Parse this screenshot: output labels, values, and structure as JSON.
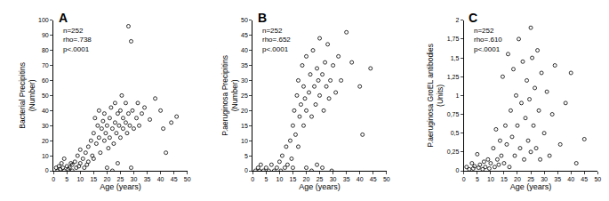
{
  "chart_data": [
    {
      "type": "scatter",
      "title": "A",
      "annotations": [
        "n=252",
        "rho=.738",
        "p<.0001"
      ],
      "xlabel": "Age (years)",
      "ylabel": [
        "Bacterial Precipitins",
        "(Number)"
      ],
      "color": "#000000",
      "marker": "circle-open",
      "grid": false,
      "xlim": [
        0,
        50
      ],
      "xticks": [
        0,
        5,
        10,
        15,
        20,
        25,
        30,
        35,
        40,
        45,
        50
      ],
      "ylim": [
        0,
        100
      ],
      "yticks": [
        0,
        10,
        20,
        30,
        40,
        50,
        60,
        70,
        80,
        90,
        100
      ],
      "x": [
        1,
        1.5,
        2,
        2.5,
        3,
        3.5,
        4,
        4,
        5,
        5.5,
        6,
        6.5,
        7,
        7,
        8,
        8.5,
        9,
        9.5,
        10,
        10,
        11,
        11.5,
        12,
        12.5,
        13,
        13,
        14,
        14.5,
        15,
        15,
        15.5,
        16,
        16.5,
        17,
        17,
        17.5,
        18,
        18.5,
        19,
        19,
        19.5,
        20,
        20.5,
        21,
        21,
        21.5,
        22,
        22.5,
        23,
        23,
        23.5,
        24,
        24.5,
        25,
        25,
        25.5,
        26,
        26,
        27,
        27,
        27.5,
        28,
        28,
        28.5,
        29,
        29,
        29.5,
        30,
        31,
        31.5,
        32,
        33,
        34,
        36,
        38,
        40,
        41,
        42,
        44,
        46,
        20,
        22,
        24
      ],
      "values": [
        2,
        0,
        3,
        1,
        5,
        2,
        0,
        8,
        3,
        1,
        2,
        5,
        0,
        4,
        6,
        2,
        10,
        3,
        5,
        14,
        8,
        2,
        12,
        4,
        16,
        6,
        20,
        10,
        25,
        8,
        35,
        18,
        30,
        22,
        40,
        12,
        28,
        33,
        20,
        38,
        25,
        30,
        15,
        35,
        22,
        42,
        28,
        18,
        32,
        45,
        25,
        38,
        30,
        22,
        40,
        50,
        28,
        35,
        32,
        45,
        25,
        96,
        38,
        30,
        86,
        2,
        40,
        28,
        35,
        45,
        30,
        38,
        42,
        34,
        48,
        40,
        28,
        12,
        32,
        36,
        2,
        0,
        5
      ]
    },
    {
      "type": "scatter",
      "title": "B",
      "annotations": [
        "n=252",
        "rho=.652",
        "p<.0001"
      ],
      "xlabel": "Age (years)",
      "ylabel": [
        "P.aeruginosa Precipitins",
        "(Number)"
      ],
      "color": "#000000",
      "marker": "circle-open",
      "grid": false,
      "xlim": [
        0,
        50
      ],
      "xticks": [
        0,
        5,
        10,
        15,
        20,
        25,
        30,
        35,
        40,
        45,
        50
      ],
      "ylim": [
        0,
        50
      ],
      "yticks": [
        0,
        5,
        10,
        15,
        20,
        25,
        30,
        35,
        40,
        45,
        50
      ],
      "x": [
        1,
        2,
        2.5,
        3,
        4,
        5,
        6,
        7,
        8,
        9,
        10,
        10.5,
        11,
        12,
        12.5,
        13,
        14,
        14.5,
        15,
        15,
        15.5,
        16,
        16.5,
        17,
        17,
        17.5,
        18,
        18.5,
        19,
        19,
        19.5,
        20,
        20,
        21,
        21.5,
        22,
        22.5,
        23,
        23.5,
        24,
        24.5,
        25,
        25,
        26,
        26.5,
        27,
        27.5,
        28,
        28.5,
        29,
        29.5,
        30,
        31,
        32,
        33,
        35,
        37,
        40,
        41,
        44,
        20,
        22,
        24,
        26
      ],
      "values": [
        0,
        1,
        0,
        2,
        0,
        1,
        0,
        2,
        0,
        1,
        3,
        0,
        5,
        1,
        8,
        2,
        10,
        4,
        15,
        1,
        20,
        12,
        25,
        8,
        30,
        18,
        22,
        35,
        15,
        28,
        24,
        20,
        38,
        26,
        32,
        18,
        40,
        28,
        22,
        34,
        30,
        44,
        25,
        32,
        20,
        36,
        28,
        42,
        24,
        30,
        0,
        35,
        26,
        38,
        30,
        46,
        36,
        28,
        12,
        34,
        1,
        0,
        2,
        1
      ]
    },
    {
      "type": "scatter",
      "title": "C",
      "annotations": [
        "n=252",
        "rho=.610",
        "p<.0001"
      ],
      "xlabel": "Age (years)",
      "ylabel": [
        "P.aeruginosa GroEL antibodies",
        "(Units)"
      ],
      "color": "#000000",
      "marker": "circle-open",
      "grid": false,
      "xlim": [
        0,
        50
      ],
      "xticks": [
        0,
        5,
        10,
        15,
        20,
        25,
        30,
        35,
        40,
        45,
        50
      ],
      "ylim": [
        0,
        2
      ],
      "yticks": [
        0,
        {
          "value": 0.25,
          "label": "0,25"
        },
        {
          "value": 0.5,
          "label": "0,5"
        },
        {
          "value": 0.75,
          "label": "0,75"
        },
        1,
        {
          "value": 1.25,
          "label": "1,25"
        },
        {
          "value": 1.5,
          "label": "1,5"
        },
        {
          "value": 1.75,
          "label": "1,75"
        },
        2
      ],
      "x": [
        1,
        2,
        3,
        3.5,
        4,
        5,
        5.5,
        6,
        7,
        7.5,
        8,
        9,
        9.5,
        10,
        11,
        11.5,
        12,
        12.5,
        13,
        13.5,
        14,
        14.5,
        15,
        15.5,
        16,
        16.5,
        17,
        17.5,
        18,
        18.5,
        19,
        19.5,
        20,
        20.5,
        21,
        21.5,
        22,
        22.5,
        23,
        23.5,
        24,
        24.5,
        25,
        25,
        25.5,
        26,
        26.5,
        27,
        27.5,
        28,
        28.5,
        29,
        30,
        31,
        32,
        33,
        34,
        36,
        38,
        40,
        42,
        45
      ],
      "values": [
        0.05,
        0.02,
        0.1,
        0.03,
        0.06,
        0.22,
        0.04,
        0.08,
        0.02,
        0.12,
        0.05,
        0.15,
        0.03,
        0.1,
        0.3,
        0.05,
        0.55,
        0.15,
        0.08,
        0.4,
        0.2,
        1.25,
        0.1,
        0.6,
        0.35,
        1.55,
        0.05,
        0.8,
        0.45,
        1.35,
        0.2,
        1.0,
        0.6,
        1.75,
        0.3,
        0.9,
        1.45,
        0.15,
        0.7,
        1.2,
        0.4,
        0.95,
        1.9,
        0.25,
        1.5,
        0.6,
        1.1,
        0.3,
        1.6,
        0.8,
        0.15,
        1.3,
        0.5,
        1.05,
        0.2,
        0.75,
        1.4,
        0.35,
        0.9,
        1.3,
        0.1,
        0.42
      ]
    }
  ]
}
